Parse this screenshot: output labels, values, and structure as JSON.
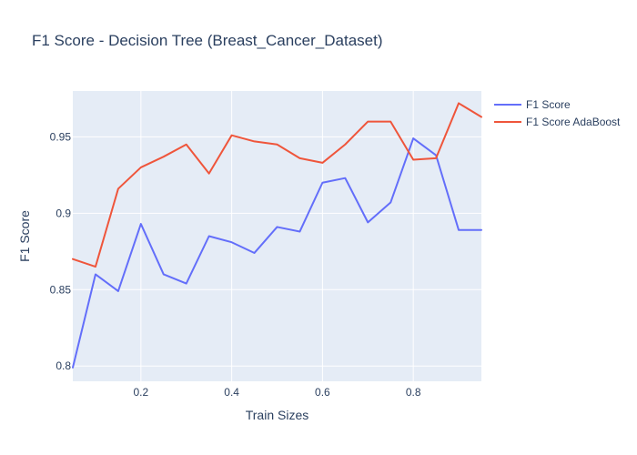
{
  "chart_data": {
    "type": "line",
    "title": "F1 Score - Decision Tree (Breast_Cancer_Dataset)",
    "xlabel": "Train Sizes",
    "ylabel": "F1 Score",
    "xlim": [
      0.05,
      0.95
    ],
    "ylim": [
      0.79,
      0.98
    ],
    "xticks": [
      0.2,
      0.4,
      0.6,
      0.8
    ],
    "xtick_labels": [
      "0.2",
      "0.4",
      "0.6",
      "0.8"
    ],
    "yticks": [
      0.8,
      0.85,
      0.9,
      0.95
    ],
    "ytick_labels": [
      "0.8",
      "0.85",
      "0.9",
      "0.95"
    ],
    "grid": true,
    "legend_position": "top-right, outside plot",
    "x": [
      0.05,
      0.1,
      0.15,
      0.2,
      0.25,
      0.3,
      0.35,
      0.4,
      0.45,
      0.5,
      0.55,
      0.6,
      0.65,
      0.7,
      0.75,
      0.8,
      0.85,
      0.9,
      0.95
    ],
    "series": [
      {
        "name": "F1 Score",
        "color": "#636efa",
        "values": [
          0.799,
          0.86,
          0.849,
          0.893,
          0.86,
          0.854,
          0.885,
          0.881,
          0.874,
          0.891,
          0.888,
          0.92,
          0.923,
          0.894,
          0.907,
          0.949,
          0.938,
          0.889,
          0.889
        ]
      },
      {
        "name": "F1 Score AdaBoost",
        "color": "#ef553b",
        "values": [
          0.87,
          0.865,
          0.916,
          0.93,
          0.937,
          0.945,
          0.926,
          0.951,
          0.947,
          0.945,
          0.936,
          0.933,
          0.945,
          0.96,
          0.96,
          0.935,
          0.936,
          0.972,
          0.963
        ]
      }
    ],
    "colors": {
      "plot_background": "#e5ecf6",
      "grid": "#ffffff",
      "text": "#2a3f5f"
    }
  }
}
